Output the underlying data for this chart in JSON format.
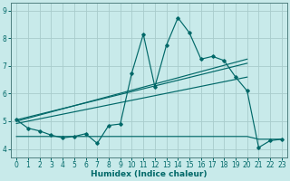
{
  "xlabel": "Humidex (Indice chaleur)",
  "xlim": [
    -0.5,
    23.5
  ],
  "ylim": [
    3.7,
    9.3
  ],
  "xticks": [
    0,
    1,
    2,
    3,
    4,
    5,
    6,
    7,
    8,
    9,
    10,
    11,
    12,
    13,
    14,
    15,
    16,
    17,
    18,
    19,
    20,
    21,
    22,
    23
  ],
  "yticks": [
    4,
    5,
    6,
    7,
    8,
    9
  ],
  "background_color": "#c8eaea",
  "grid_color": "#a8cccc",
  "line_color": "#006868",
  "spiky_x": [
    0,
    1,
    2,
    3,
    4,
    5,
    6,
    7,
    8,
    9,
    10,
    11,
    12,
    13,
    14,
    15,
    16,
    17,
    18,
    19,
    20,
    21,
    22,
    23
  ],
  "spiky_y": [
    5.05,
    4.75,
    4.65,
    4.5,
    4.4,
    4.45,
    4.55,
    4.2,
    4.85,
    4.9,
    6.75,
    8.15,
    6.25,
    7.75,
    8.75,
    8.2,
    7.25,
    7.35,
    7.2,
    6.6,
    6.1,
    4.05,
    4.3,
    4.35
  ],
  "trend1_x": [
    0,
    20
  ],
  "trend1_y": [
    5.0,
    7.25
  ],
  "trend2_x": [
    0,
    20
  ],
  "trend2_y": [
    5.05,
    7.1
  ],
  "trend3_x": [
    0,
    20
  ],
  "trend3_y": [
    4.92,
    6.6
  ],
  "flat_x": [
    0,
    9,
    10,
    11,
    12,
    13,
    14,
    15,
    16,
    17,
    18,
    19,
    20,
    21,
    22,
    23
  ],
  "flat_y": [
    4.45,
    4.45,
    4.45,
    4.45,
    4.45,
    4.45,
    4.45,
    4.45,
    4.45,
    4.45,
    4.45,
    4.45,
    4.45,
    4.35,
    4.35,
    4.35
  ],
  "xlabel_fontsize": 6.5,
  "tick_fontsize": 5.5
}
